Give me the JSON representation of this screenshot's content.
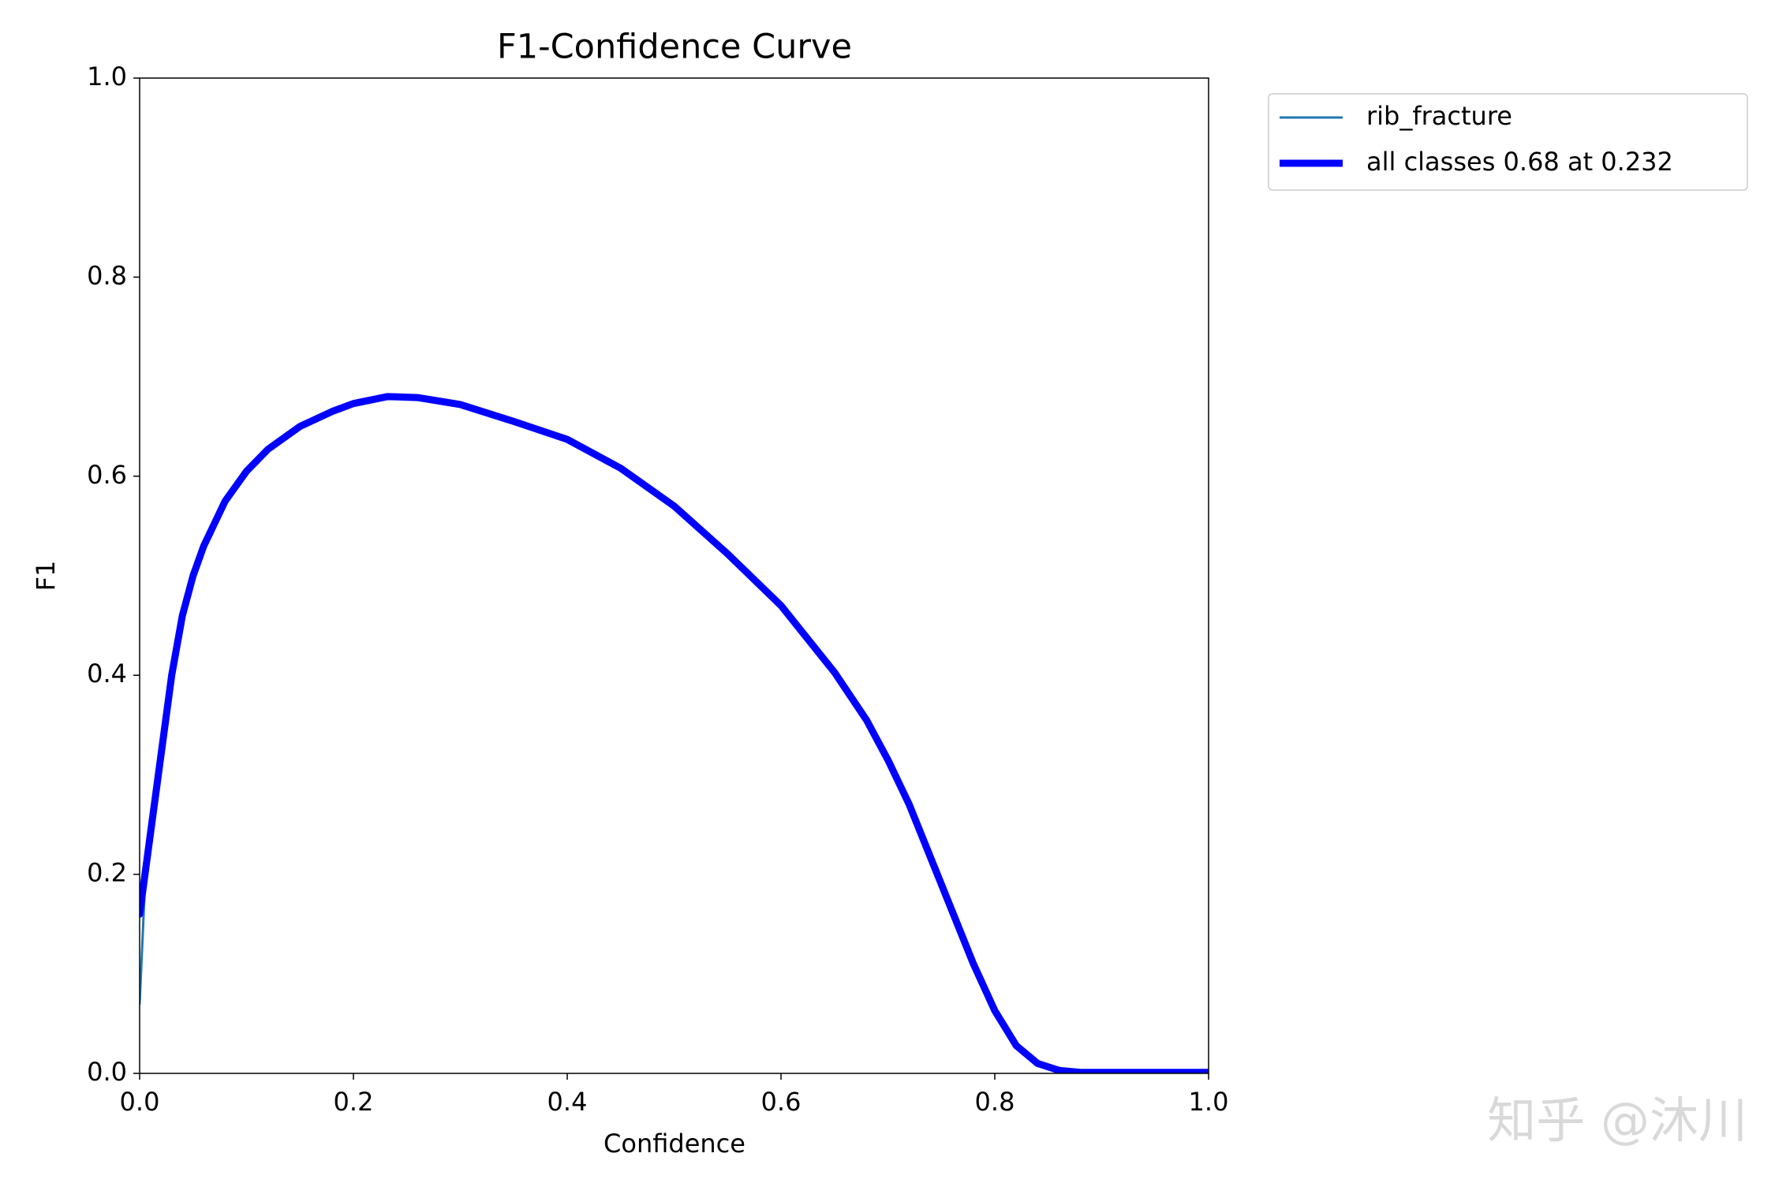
{
  "chart_data": {
    "type": "line",
    "title": "F1-Confidence Curve",
    "xlabel": "Confidence",
    "ylabel": "F1",
    "x": [
      0,
      0.005,
      0.01,
      0.02,
      0.03,
      0.04,
      0.05,
      0.06,
      0.08,
      0.1,
      0.12,
      0.15,
      0.18,
      0.2,
      0.232,
      0.26,
      0.3,
      0.35,
      0.4,
      0.45,
      0.5,
      0.55,
      0.6,
      0.65,
      0.68,
      0.7,
      0.72,
      0.75,
      0.78,
      0.8,
      0.82,
      0.84,
      0.86,
      0.88,
      0.9,
      0.95,
      1.0
    ],
    "series": [
      {
        "name": "rib_fracture",
        "color": "#1f77b4",
        "linewidth": 1,
        "values": [
          0.07,
          0.19,
          0.25,
          0.33,
          0.41,
          0.465,
          0.5,
          0.53,
          0.575,
          0.605,
          0.627,
          0.65,
          0.665,
          0.673,
          0.68,
          0.679,
          0.672,
          0.655,
          0.637,
          0.608,
          0.57,
          0.522,
          0.47,
          0.403,
          0.355,
          0.315,
          0.27,
          0.19,
          0.11,
          0.063,
          0.025,
          0.01,
          0.003,
          0.001,
          0.001,
          0.001,
          0.001
        ]
      },
      {
        "name": "all classes 0.68 at 0.232",
        "color": "#0000ff",
        "linewidth": 3,
        "values": [
          0.16,
          0.2,
          0.24,
          0.32,
          0.4,
          0.46,
          0.5,
          0.53,
          0.575,
          0.605,
          0.627,
          0.65,
          0.665,
          0.673,
          0.68,
          0.679,
          0.672,
          0.655,
          0.637,
          0.608,
          0.57,
          0.522,
          0.47,
          0.403,
          0.355,
          0.315,
          0.27,
          0.19,
          0.11,
          0.063,
          0.028,
          0.01,
          0.003,
          0.001,
          0.001,
          0.001,
          0.001
        ]
      }
    ],
    "xlim": [
      0,
      1
    ],
    "ylim": [
      0,
      1
    ],
    "xticks": [
      {
        "value": 0,
        "label": "0.0"
      },
      0.2,
      0.4,
      0.6,
      0.8,
      {
        "value": 1,
        "label": "1.0"
      }
    ],
    "yticks": [
      {
        "value": 0,
        "label": "0.0"
      },
      0.2,
      0.4,
      0.6,
      0.8,
      {
        "value": 1,
        "label": "1.0"
      }
    ],
    "grid": false,
    "legend": "outside",
    "watermark": "知乎 @沐川"
  }
}
